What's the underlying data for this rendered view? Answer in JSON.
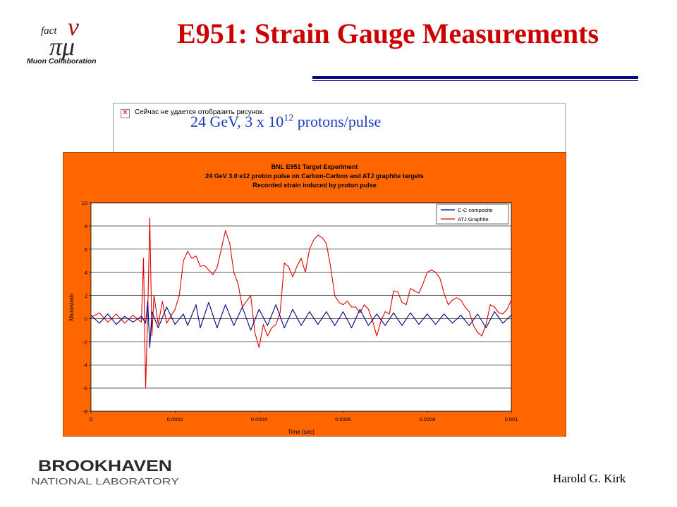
{
  "header": {
    "title": "E951: Strain Gauge Measurements",
    "logo_greek": "ν",
    "logo_fact": "fact",
    "logo_mu": "πμ",
    "logo_caption": "Muon Collaboration"
  },
  "broken_image": {
    "text": "Сейчас не удается отобразить рисунок."
  },
  "subtitle": {
    "prefix": "24 GeV, 3 x 10",
    "exponent": "12",
    "suffix": " protons/pulse"
  },
  "footer": {
    "org_name": "BROOKHAVEN",
    "org_sub": "NATIONAL LABORATORY",
    "author": "Harold G. Kirk"
  },
  "colors": {
    "title": "#cc0000",
    "chart_frame": "#ff6600",
    "series_cc": "#000080",
    "series_atj": "#e00000",
    "rule": "#0a0a80"
  },
  "chart_data": {
    "type": "line",
    "title_lines": [
      "BNL E951 Target Experiment",
      "24 GeV 3.0 e12 proton pulse on Carbon-Carbon and ATJ graphite targets",
      "Recorded strain induced by proton pulse"
    ],
    "xlabel": "Time (sec)",
    "ylabel": "Microstrain",
    "xlim": [
      0,
      0.001
    ],
    "ylim": [
      -8,
      10
    ],
    "x_ticks": [
      "0",
      "0.0002",
      "0.0004",
      "0.0006",
      "0.0008",
      "0.001"
    ],
    "y_ticks": [
      "10",
      "8",
      "6",
      "4",
      "2",
      "0",
      "-2",
      "-4",
      "-6",
      "-8"
    ],
    "grid": "horizontal",
    "legend_position": "top-right",
    "series": [
      {
        "name": "C-C composite",
        "color": "#000080",
        "points": [
          [
            0,
            0.3
          ],
          [
            2e-05,
            -0.4
          ],
          [
            4e-05,
            0.4
          ],
          [
            6e-05,
            -0.5
          ],
          [
            8e-05,
            0.2
          ],
          [
            0.0001,
            -0.3
          ],
          [
            0.00012,
            0.2
          ],
          [
            0.00013,
            -0.4
          ],
          [
            0.000135,
            1.5
          ],
          [
            0.00014,
            -2.5
          ],
          [
            0.000145,
            0.6
          ],
          [
            0.00016,
            -0.8
          ],
          [
            0.00018,
            1.0
          ],
          [
            0.0002,
            -0.5
          ],
          [
            0.00022,
            0.4
          ],
          [
            0.00023,
            -0.6
          ],
          [
            0.00025,
            1.2
          ],
          [
            0.00026,
            -0.8
          ],
          [
            0.00028,
            1.4
          ],
          [
            0.0003,
            -0.8
          ],
          [
            0.00032,
            1.2
          ],
          [
            0.00034,
            -0.6
          ],
          [
            0.00036,
            1.0
          ],
          [
            0.00038,
            -1.0
          ],
          [
            0.0004,
            0.8
          ],
          [
            0.00042,
            -0.6
          ],
          [
            0.00044,
            1.2
          ],
          [
            0.00046,
            -0.8
          ],
          [
            0.00048,
            0.8
          ],
          [
            0.0005,
            -0.6
          ],
          [
            0.00052,
            0.6
          ],
          [
            0.00054,
            -0.5
          ],
          [
            0.00056,
            0.6
          ],
          [
            0.00058,
            -0.6
          ],
          [
            0.0006,
            0.6
          ],
          [
            0.00062,
            -0.8
          ],
          [
            0.00064,
            0.8
          ],
          [
            0.00066,
            -0.6
          ],
          [
            0.00068,
            0.4
          ],
          [
            0.0007,
            -0.6
          ],
          [
            0.00072,
            0.5
          ],
          [
            0.00074,
            -0.6
          ],
          [
            0.00076,
            0.5
          ],
          [
            0.00078,
            -0.5
          ],
          [
            0.0008,
            0.4
          ],
          [
            0.00082,
            -0.5
          ],
          [
            0.00084,
            0.4
          ],
          [
            0.00086,
            -0.4
          ],
          [
            0.00088,
            0.3
          ],
          [
            0.0009,
            -0.6
          ],
          [
            0.00092,
            0.4
          ],
          [
            0.00094,
            -0.8
          ],
          [
            0.00096,
            0.6
          ],
          [
            0.00098,
            -0.4
          ],
          [
            0.001,
            0.3
          ]
        ]
      },
      {
        "name": "ATJ Graphite",
        "color": "#e00000",
        "points": [
          [
            0,
            0.1
          ],
          [
            2e-05,
            0.5
          ],
          [
            4e-05,
            -0.3
          ],
          [
            6e-05,
            0.4
          ],
          [
            8e-05,
            -0.4
          ],
          [
            0.0001,
            0.3
          ],
          [
            0.00012,
            -0.3
          ],
          [
            0.000125,
            5.2
          ],
          [
            0.00013,
            -6.0
          ],
          [
            0.000135,
            0.5
          ],
          [
            0.00014,
            8.7
          ],
          [
            0.000145,
            -1.5
          ],
          [
            0.00015,
            2.0
          ],
          [
            0.00016,
            -0.5
          ],
          [
            0.00017,
            1.5
          ],
          [
            0.00018,
            -0.4
          ],
          [
            0.0002,
            0.8
          ],
          [
            0.00021,
            2.0
          ],
          [
            0.00022,
            5.0
          ],
          [
            0.00023,
            5.8
          ],
          [
            0.00024,
            5.2
          ],
          [
            0.00025,
            5.4
          ],
          [
            0.00026,
            4.5
          ],
          [
            0.00027,
            4.6
          ],
          [
            0.00028,
            4.2
          ],
          [
            0.00029,
            3.8
          ],
          [
            0.0003,
            4.4
          ],
          [
            0.00031,
            6.0
          ],
          [
            0.00032,
            7.6
          ],
          [
            0.00033,
            6.5
          ],
          [
            0.00034,
            4.0
          ],
          [
            0.00035,
            3.0
          ],
          [
            0.00036,
            1.0
          ],
          [
            0.00037,
            1.5
          ],
          [
            0.00038,
            2.0
          ],
          [
            0.00039,
            -1.2
          ],
          [
            0.0004,
            -2.5
          ],
          [
            0.00041,
            -0.5
          ],
          [
            0.00042,
            -1.5
          ],
          [
            0.00043,
            -0.8
          ],
          [
            0.00044,
            -0.5
          ],
          [
            0.00045,
            0.5
          ],
          [
            0.00046,
            4.8
          ],
          [
            0.00047,
            4.5
          ],
          [
            0.00048,
            3.6
          ],
          [
            0.00049,
            4.5
          ],
          [
            0.0005,
            5.2
          ],
          [
            0.00051,
            4.0
          ],
          [
            0.00052,
            6.0
          ],
          [
            0.00053,
            6.8
          ],
          [
            0.00054,
            7.2
          ],
          [
            0.00055,
            7.0
          ],
          [
            0.00056,
            6.5
          ],
          [
            0.00057,
            4.5
          ],
          [
            0.00058,
            2.0
          ],
          [
            0.00059,
            1.4
          ],
          [
            0.0006,
            1.2
          ],
          [
            0.00061,
            1.5
          ],
          [
            0.00062,
            1.0
          ],
          [
            0.00063,
            1.0
          ],
          [
            0.00064,
            0.5
          ],
          [
            0.00065,
            1.2
          ],
          [
            0.00066,
            0.8
          ],
          [
            0.00067,
            -0.2
          ],
          [
            0.00068,
            -1.5
          ],
          [
            0.00069,
            -0.2
          ],
          [
            0.0007,
            0.6
          ],
          [
            0.00071,
            0.4
          ],
          [
            0.00072,
            2.4
          ],
          [
            0.00073,
            2.3
          ],
          [
            0.00074,
            1.4
          ],
          [
            0.00075,
            1.2
          ],
          [
            0.00076,
            2.6
          ],
          [
            0.00077,
            2.4
          ],
          [
            0.00078,
            2.2
          ],
          [
            0.00079,
            3.0
          ],
          [
            0.0008,
            4.0
          ],
          [
            0.00081,
            4.2
          ],
          [
            0.00082,
            4.0
          ],
          [
            0.00083,
            3.5
          ],
          [
            0.00084,
            2.2
          ],
          [
            0.00085,
            1.2
          ],
          [
            0.00086,
            1.6
          ],
          [
            0.00087,
            1.8
          ],
          [
            0.00088,
            1.6
          ],
          [
            0.00089,
            1.0
          ],
          [
            0.0009,
            0.6
          ],
          [
            0.00091,
            -0.6
          ],
          [
            0.00092,
            -1.2
          ],
          [
            0.00093,
            -1.5
          ],
          [
            0.00094,
            -0.5
          ],
          [
            0.00095,
            1.2
          ],
          [
            0.00096,
            1.0
          ],
          [
            0.00097,
            0.5
          ],
          [
            0.00098,
            0.4
          ],
          [
            0.00099,
            0.8
          ],
          [
            0.001,
            1.6
          ]
        ]
      }
    ]
  }
}
